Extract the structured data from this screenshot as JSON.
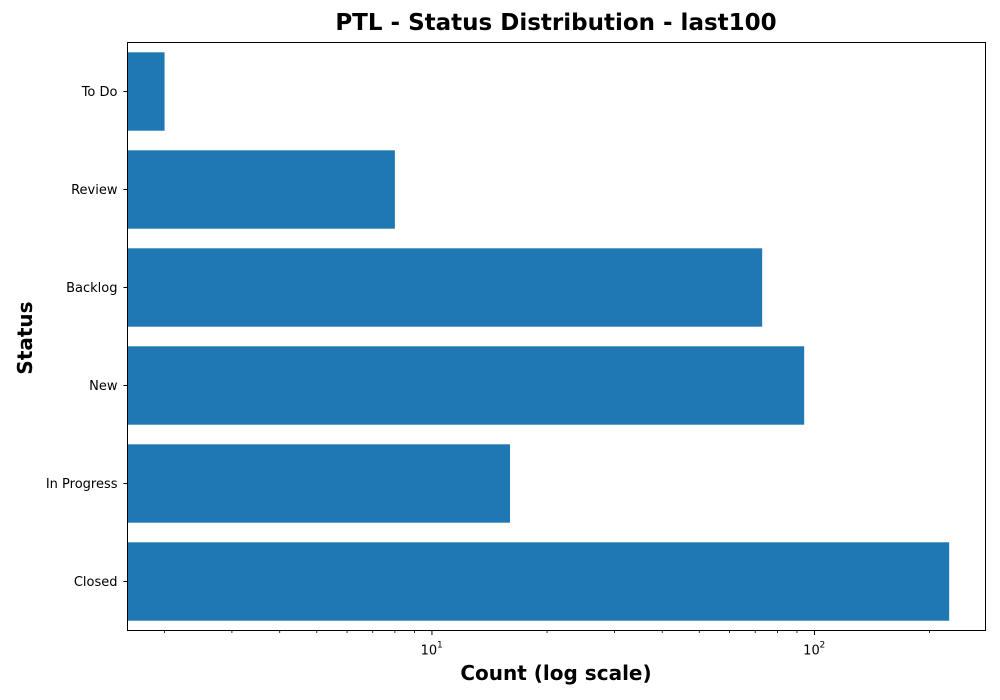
{
  "chart_data": {
    "type": "bar",
    "orientation": "horizontal",
    "title": "PTL - Status Distribution - last100",
    "xlabel": "Count (log scale)",
    "ylabel": "Status",
    "x_scale": "log",
    "xlim": [
      1.6,
      280
    ],
    "x_major_ticks": [
      {
        "value": 10,
        "base": "10",
        "exp": "1"
      },
      {
        "value": 100,
        "base": "10",
        "exp": "2"
      }
    ],
    "categories": [
      "To Do",
      "Review",
      "Backlog",
      "New",
      "In Progress",
      "Closed"
    ],
    "values": [
      2,
      8,
      73,
      94,
      16,
      225
    ],
    "bar_color": "#1f77b4",
    "grid": false,
    "legend": false
  }
}
